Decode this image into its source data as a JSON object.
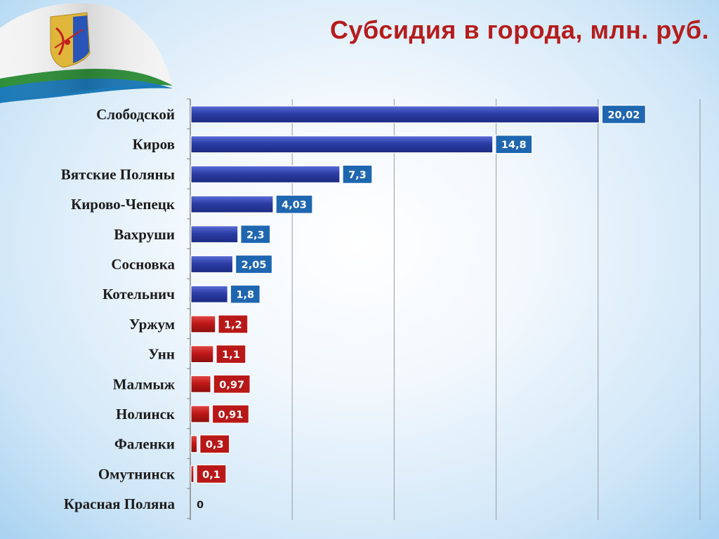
{
  "page": {
    "title": "Субсидия в города, млн. руб."
  },
  "colors": {
    "title": "#b51c1c",
    "bar_blue": "#2c3ea6",
    "bar_red": "#c01818",
    "label_blue": "#1f66b0",
    "label_red": "#b81818"
  },
  "icons": {
    "flag": "kirov-oblast-flag-icon"
  },
  "chart_data": {
    "type": "bar",
    "orientation": "horizontal",
    "title": "Субсидия в города, млн. руб.",
    "categories": [
      "Слободской",
      "Киров",
      "Вятские Поляны",
      "Кирово-Чепецк",
      "Вахруши",
      "Сосновка",
      "Котельнич",
      "Уржум",
      "Унн",
      "Малмыж",
      "Нолинск",
      "Фаленки",
      "Омутнинск",
      "Красная Поляна"
    ],
    "values": [
      20.02,
      14.8,
      7.3,
      4.03,
      2.3,
      2.05,
      1.8,
      1.2,
      1.1,
      0.97,
      0.91,
      0.3,
      0.1,
      0
    ],
    "value_labels": [
      "20,02",
      "14,8",
      "7,3",
      "4,03",
      "2,3",
      "2,05",
      "1,8",
      "1,2",
      "1,1",
      "0,97",
      "0,91",
      "0,3",
      "0,1",
      "0"
    ],
    "bar_colors": [
      "blue",
      "blue",
      "blue",
      "blue",
      "blue",
      "blue",
      "blue",
      "red",
      "red",
      "red",
      "red",
      "red",
      "red",
      "none"
    ],
    "xlim": [
      0,
      25
    ],
    "grid": true,
    "axis_tick_labels_shown": false,
    "legend": "none"
  }
}
